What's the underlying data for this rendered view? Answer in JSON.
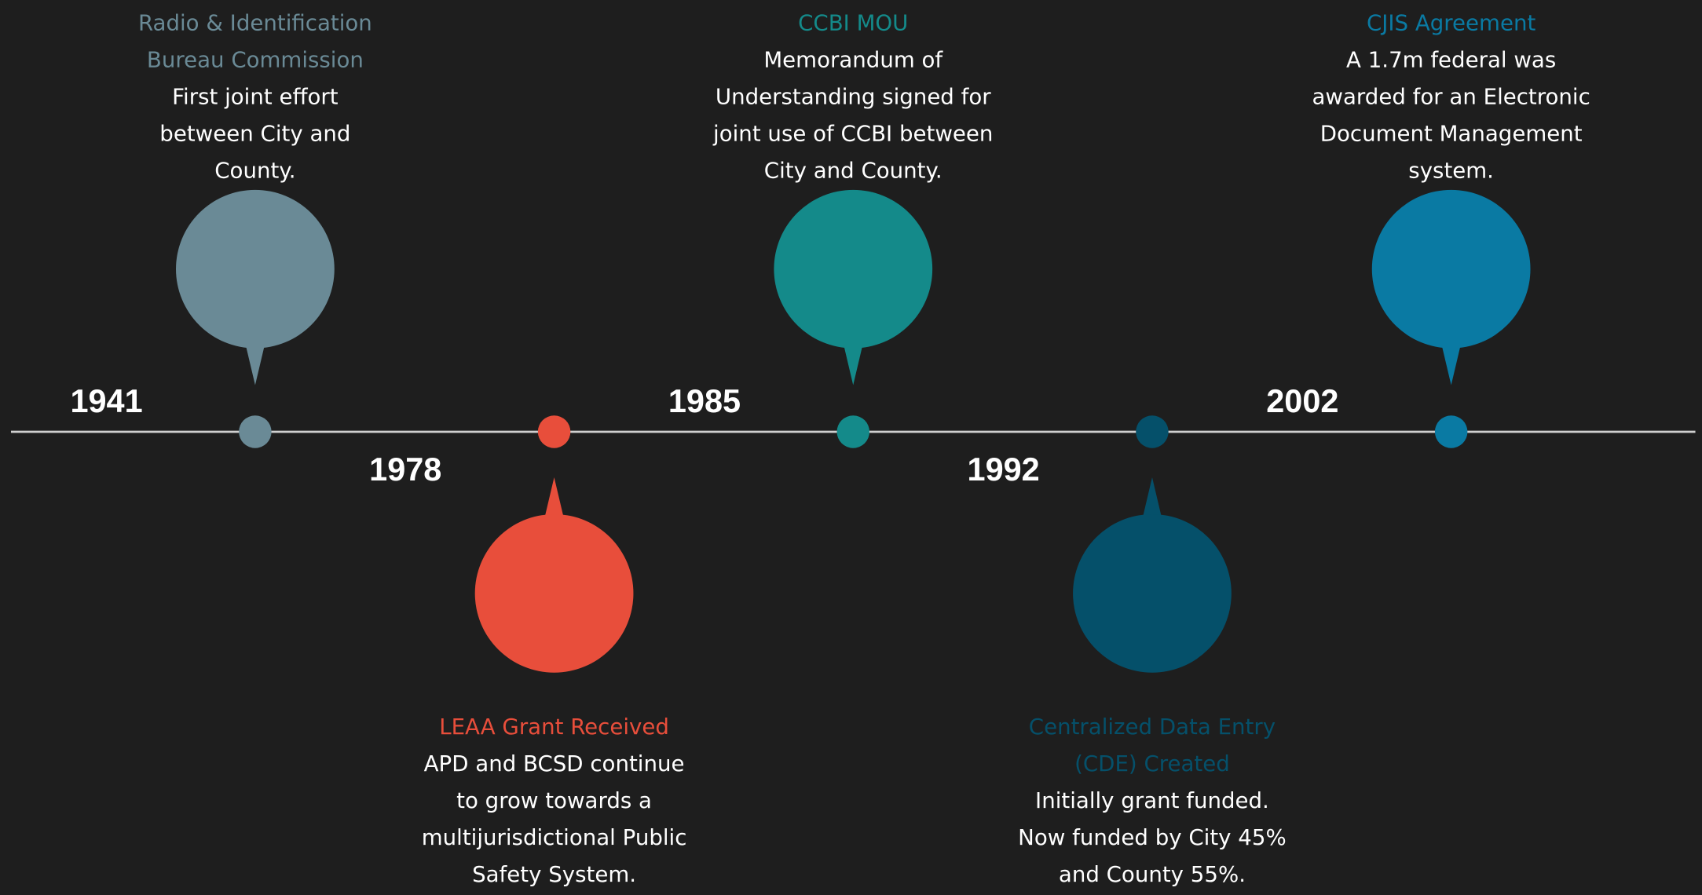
{
  "timeline": {
    "events": [
      {
        "year": "1941",
        "title": [
          "Radio & Identification",
          "Bureau Commission"
        ],
        "description": [
          "First joint effort",
          "between City and",
          "County."
        ],
        "color": "#6a8a96"
      },
      {
        "year": "1978",
        "title": [
          "LEAA Grant Received"
        ],
        "description": [
          "APD and BCSD continue",
          "to grow towards a",
          "multijurisdictional Public",
          "Safety System."
        ],
        "color": "#e84e3b"
      },
      {
        "year": "1985",
        "title": [
          "CCBI MOU"
        ],
        "description": [
          "Memorandum of",
          "Understanding signed for",
          "joint use of CCBI between",
          "City and County."
        ],
        "color": "#148a8a"
      },
      {
        "year": "1992",
        "title": [
          "Centralized Data Entry",
          "(CDE) Created"
        ],
        "description": [
          "Initially grant funded.",
          "Now funded by City 45%",
          "and County 55%."
        ],
        "color": "#05506a"
      },
      {
        "year": "2002",
        "title": [
          "CJIS Agreement"
        ],
        "description": [
          "A 1.7m federal was",
          "awarded for an Electronic",
          "Document Management",
          "system."
        ],
        "color": "#0a7aa3"
      }
    ]
  }
}
